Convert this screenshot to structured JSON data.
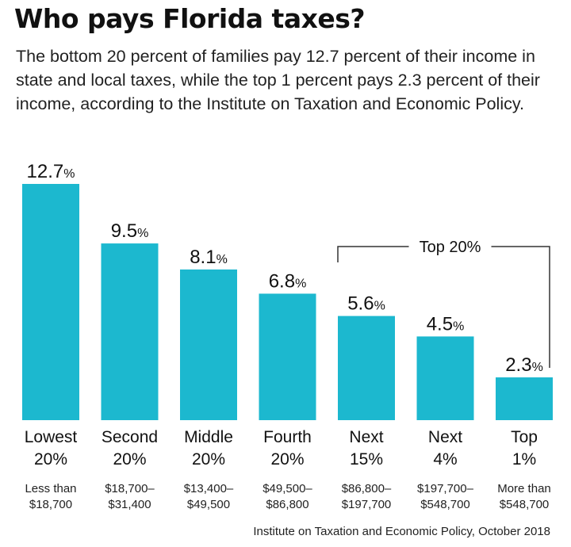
{
  "title": "Who pays Florida taxes?",
  "subtitle": "The bottom 20 percent of families pay 12.7 percent of their income in state and local taxes, while the top 1 percent pays 2.3 percent of their income, according to the Institute on Taxation and Economic Policy.",
  "source": "Institute on Taxation and Economic Policy, October 2018",
  "colors": {
    "bar": "#1cb8cf",
    "bracket": "#333333"
  },
  "chart_data": {
    "type": "bar",
    "title": "Who pays Florida taxes?",
    "xlabel": "",
    "ylabel": "",
    "ylim": [
      0,
      12.7
    ],
    "grid": false,
    "unit": "%",
    "categories": [
      {
        "line1": "Lowest",
        "line2": "20%",
        "range1": "Less than",
        "range2": "$18,700"
      },
      {
        "line1": "Second",
        "line2": "20%",
        "range1": "$18,700–",
        "range2": "$31,400"
      },
      {
        "line1": "Middle",
        "line2": "20%",
        "range1": "$13,400–",
        "range2": "$49,500"
      },
      {
        "line1": "Fourth",
        "line2": "20%",
        "range1": "$49,500–",
        "range2": "$86,800"
      },
      {
        "line1": "Next",
        "line2": "15%",
        "range1": "$86,800–",
        "range2": "$197,700"
      },
      {
        "line1": "Next",
        "line2": "4%",
        "range1": "$197,700–",
        "range2": "$548,700"
      },
      {
        "line1": "Top",
        "line2": "1%",
        "range1": "More than",
        "range2": "$548,700"
      }
    ],
    "values": [
      12.7,
      9.5,
      8.1,
      6.8,
      5.6,
      4.5,
      2.3
    ],
    "value_labels": [
      "12.7",
      "9.5",
      "8.1",
      "6.8",
      "5.6",
      "4.5",
      "2.3"
    ],
    "annotations": [
      {
        "text": "Top 20%",
        "spans_categories": [
          4,
          6
        ]
      }
    ]
  }
}
